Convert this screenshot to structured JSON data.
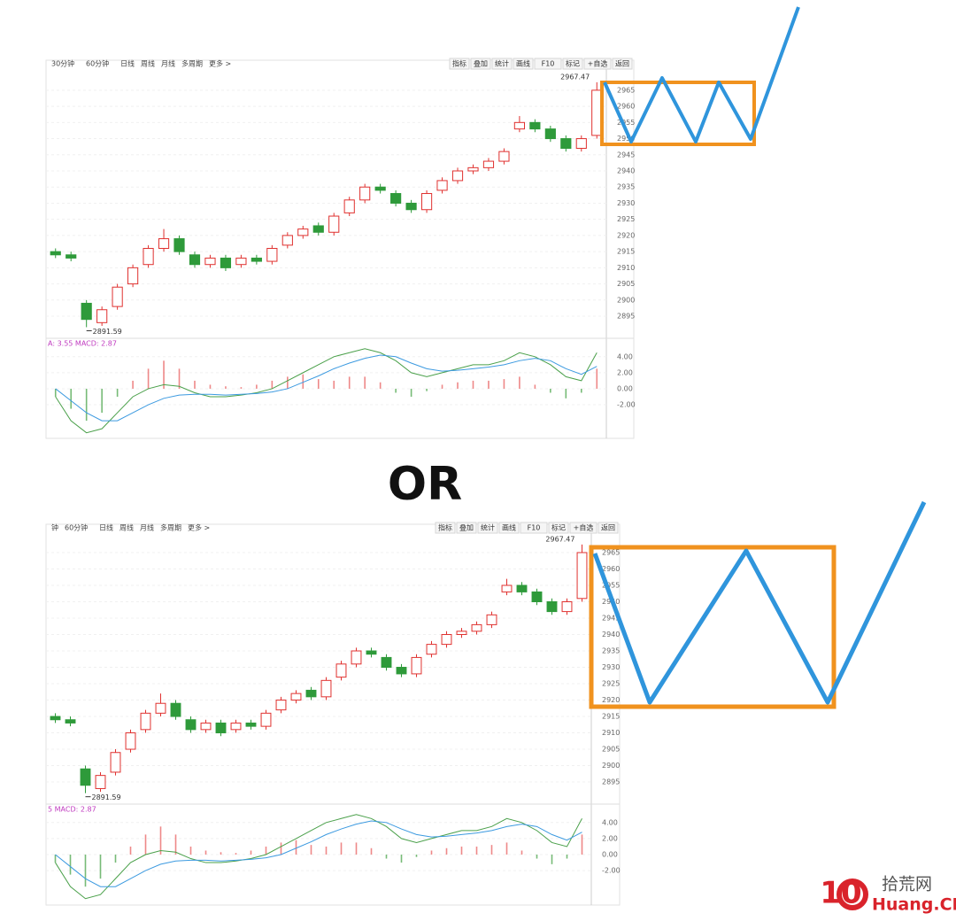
{
  "chart_data": [
    {
      "type": "candlestick",
      "periods": [
        "30分钟",
        "60分钟",
        "日线",
        "周线",
        "月线",
        "多周期",
        "更多 >"
      ],
      "tools": [
        "指标",
        "叠加",
        "统计",
        "画线",
        "F10",
        "标记",
        "+自选",
        "返回"
      ],
      "macd_label": "A: 3.55  MACD: 2.87",
      "open": [
        2915,
        2914,
        2899,
        2893,
        2898,
        2905,
        2911,
        2916,
        2919,
        2914,
        2911,
        2913,
        2911,
        2913,
        2912,
        2917,
        2920,
        2923,
        2921,
        2927,
        2931,
        2935,
        2933,
        2930,
        2928,
        2934,
        2937,
        2940,
        2941,
        2943,
        2953,
        2955,
        2953,
        2950,
        2947,
        2951
      ],
      "close": [
        2914,
        2913,
        2894,
        2897,
        2904,
        2910,
        2916,
        2919,
        2915,
        2911,
        2913,
        2910,
        2913,
        2912,
        2916,
        2920,
        2922,
        2921,
        2926,
        2931,
        2935,
        2934,
        2930,
        2928,
        2933,
        2937,
        2940,
        2941,
        2943,
        2946,
        2955,
        2953,
        2950,
        2947,
        2950,
        2965
      ],
      "high": [
        2916,
        2915,
        2900,
        2898,
        2905,
        2911,
        2917,
        2922,
        2920,
        2915,
        2914,
        2914,
        2914,
        2914,
        2917,
        2921,
        2923,
        2924,
        2927,
        2932,
        2936,
        2936,
        2934,
        2931,
        2934,
        2938,
        2941,
        2942,
        2944,
        2947,
        2957,
        2956,
        2954,
        2951,
        2951,
        2967.47
      ],
      "low": [
        2913,
        2912,
        2891.59,
        2892,
        2897,
        2904,
        2910,
        2915,
        2914,
        2910,
        2910,
        2909,
        2910,
        2911,
        2911,
        2916,
        2919,
        2920,
        2920,
        2926,
        2930,
        2933,
        2929,
        2927,
        2927,
        2933,
        2936,
        2939,
        2940,
        2942,
        2952,
        2952,
        2949,
        2946,
        2946,
        2950
      ],
      "macd": [
        -1,
        -2.5,
        -4,
        -3,
        -1,
        1,
        2.5,
        3.5,
        2.5,
        1,
        0.5,
        0.3,
        0.2,
        0.5,
        1,
        1.5,
        1.8,
        1.2,
        1,
        1.5,
        1.5,
        0.8,
        -0.5,
        -1,
        -0.3,
        0.5,
        0.8,
        1,
        1,
        1.2,
        1.5,
        0.5,
        -0.5,
        -1.2,
        -0.5,
        2.5
      ],
      "dif": [
        -1,
        -4,
        -5.5,
        -5,
        -3,
        -1,
        0,
        0.5,
        0.3,
        -0.5,
        -1,
        -1,
        -0.8,
        -0.5,
        0,
        1,
        2,
        3,
        4,
        4.5,
        5,
        4.5,
        3.5,
        2,
        1.5,
        2,
        2.5,
        3,
        3,
        3.5,
        4.5,
        4,
        3,
        1.5,
        1,
        4.5
      ],
      "dea": [
        0,
        -1.5,
        -3,
        -4,
        -4,
        -3,
        -2,
        -1.2,
        -0.8,
        -0.7,
        -0.7,
        -0.8,
        -0.7,
        -0.6,
        -0.4,
        0,
        0.8,
        1.6,
        2.5,
        3.2,
        3.8,
        4.2,
        4,
        3.2,
        2.5,
        2.2,
        2.3,
        2.5,
        2.7,
        3,
        3.5,
        3.8,
        3.5,
        2.5,
        1.8,
        2.8
      ],
      "ylim": [
        2888.7,
        2971
      ],
      "yticks": [
        2965,
        2960,
        2955,
        2950,
        2945,
        2940,
        2935,
        2930,
        2925,
        2920,
        2915,
        2910,
        2905,
        2900,
        2895
      ],
      "y2lim": [
        -6.2,
        6.3
      ],
      "y2ticks": [
        {
          "value": 4,
          "label": "4.00"
        },
        {
          "value": 2,
          "label": "2.00"
        },
        {
          "value": 0,
          "label": "0.00"
        },
        {
          "value": -2,
          "label": "-2.00"
        }
      ]
    },
    {
      "type": "candlestick",
      "periods": [
        "钟",
        "60分钟",
        "日线",
        "周线",
        "月线",
        "多周期",
        "更多 >"
      ],
      "tools": [
        "指标",
        "叠加",
        "统计",
        "画线",
        "F10",
        "标记",
        "+自选",
        "返回"
      ],
      "macd_label": "5  MACD: 2.87",
      "open": [
        2915,
        2914,
        2899,
        2893,
        2898,
        2905,
        2911,
        2916,
        2919,
        2914,
        2911,
        2913,
        2911,
        2913,
        2912,
        2917,
        2920,
        2923,
        2921,
        2927,
        2931,
        2935,
        2933,
        2930,
        2928,
        2934,
        2937,
        2940,
        2941,
        2943,
        2953,
        2955,
        2953,
        2950,
        2947,
        2951
      ],
      "close": [
        2914,
        2913,
        2894,
        2897,
        2904,
        2910,
        2916,
        2919,
        2915,
        2911,
        2913,
        2910,
        2913,
        2912,
        2916,
        2920,
        2922,
        2921,
        2926,
        2931,
        2935,
        2934,
        2930,
        2928,
        2933,
        2937,
        2940,
        2941,
        2943,
        2946,
        2955,
        2953,
        2950,
        2947,
        2950,
        2965
      ],
      "high": [
        2916,
        2915,
        2900,
        2898,
        2905,
        2911,
        2917,
        2922,
        2920,
        2915,
        2914,
        2914,
        2914,
        2914,
        2917,
        2921,
        2923,
        2924,
        2927,
        2932,
        2936,
        2936,
        2934,
        2931,
        2934,
        2938,
        2941,
        2942,
        2944,
        2947,
        2957,
        2956,
        2954,
        2951,
        2951,
        2967.47
      ],
      "low": [
        2913,
        2912,
        2891.59,
        2892,
        2897,
        2904,
        2910,
        2915,
        2914,
        2910,
        2910,
        2909,
        2910,
        2911,
        2911,
        2916,
        2919,
        2920,
        2920,
        2926,
        2930,
        2933,
        2929,
        2927,
        2927,
        2933,
        2936,
        2939,
        2940,
        2942,
        2952,
        2952,
        2949,
        2946,
        2946,
        2950
      ],
      "macd": [
        -1,
        -2.5,
        -4,
        -3,
        -1,
        1,
        2.5,
        3.5,
        2.5,
        1,
        0.5,
        0.3,
        0.2,
        0.5,
        1,
        1.5,
        1.8,
        1.2,
        1,
        1.5,
        1.5,
        0.8,
        -0.5,
        -1,
        -0.3,
        0.5,
        0.8,
        1,
        1,
        1.2,
        1.5,
        0.5,
        -0.5,
        -1.2,
        -0.5,
        2.5
      ],
      "dif": [
        -1,
        -4,
        -5.5,
        -5,
        -3,
        -1,
        0,
        0.5,
        0.3,
        -0.5,
        -1,
        -1,
        -0.8,
        -0.5,
        0,
        1,
        2,
        3,
        4,
        4.5,
        5,
        4.5,
        3.5,
        2,
        1.5,
        2,
        2.5,
        3,
        3,
        3.5,
        4.5,
        4,
        3,
        1.5,
        1,
        4.5
      ],
      "dea": [
        0,
        -1.5,
        -3,
        -4,
        -4,
        -3,
        -2,
        -1.2,
        -0.8,
        -0.7,
        -0.7,
        -0.8,
        -0.7,
        -0.6,
        -0.4,
        0,
        0.8,
        1.6,
        2.5,
        3.2,
        3.8,
        4.2,
        4,
        3.2,
        2.5,
        2.2,
        2.3,
        2.5,
        2.7,
        3,
        3.5,
        3.8,
        3.5,
        2.5,
        1.8,
        2.8
      ],
      "ylim": [
        2888.8,
        2970.4
      ],
      "yticks": [
        2965,
        2960,
        2955,
        2950,
        2945,
        2940,
        2935,
        2930,
        2925,
        2920,
        2915,
        2910,
        2905,
        2900,
        2895
      ],
      "y2lim": [
        -6.3,
        6.3
      ],
      "y2ticks": [
        {
          "value": 4,
          "label": "4.00"
        },
        {
          "value": 2,
          "label": "2.00"
        },
        {
          "value": 0,
          "label": "0.00"
        },
        {
          "value": -2,
          "label": "-2.00"
        }
      ]
    }
  ],
  "separator": "OR",
  "watermark": {
    "logo": "10",
    "site": "拾荒网",
    "domain": "Huang.CN"
  }
}
